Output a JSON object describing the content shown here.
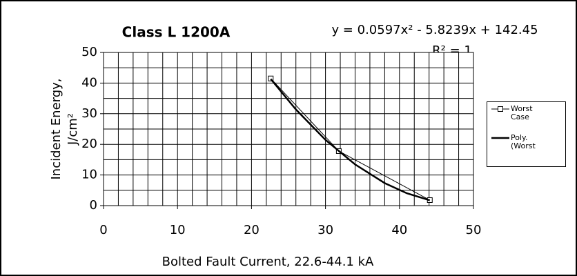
{
  "chart_data": {
    "type": "line",
    "title": "Class L 1200A",
    "annotations": [
      "y = 0.0597x² - 5.8239x + 142.45",
      "R² = 1"
    ],
    "xlabel": "Bolted Fault Current, 22.6-44.1 kA",
    "ylabel": [
      "Incident Energy,",
      "J/cm²"
    ],
    "xlim": [
      0,
      50
    ],
    "xticks": [
      0,
      10,
      20,
      30,
      40,
      50
    ],
    "ylim": [
      0,
      50
    ],
    "yticks": [
      0,
      10,
      20,
      30,
      40,
      50
    ],
    "x_gridlines": [
      2,
      4,
      6,
      8,
      10,
      12,
      14,
      16,
      18,
      20,
      22,
      24,
      26,
      28,
      30,
      32,
      34,
      36,
      38,
      40,
      42,
      44,
      46,
      48
    ],
    "y_gridlines": [
      5,
      10,
      15,
      20,
      25,
      30,
      35,
      40,
      45
    ],
    "series": [
      {
        "name": "Worst Case",
        "color": "#000000",
        "marker": "square",
        "width": 1,
        "x": [
          22.6,
          31.8,
          44.1
        ],
        "values": [
          41.5,
          17.8,
          1.8
        ]
      },
      {
        "name": "Poly. (Worst",
        "color": "#000000",
        "marker": null,
        "width": 2.5,
        "x": [
          22.6,
          26,
          30,
          34,
          38,
          41,
          44.1
        ],
        "values": [
          41.32,
          31.39,
          21.46,
          13.45,
          7.35,
          4.03,
          1.72
        ]
      }
    ],
    "legend": "right"
  }
}
